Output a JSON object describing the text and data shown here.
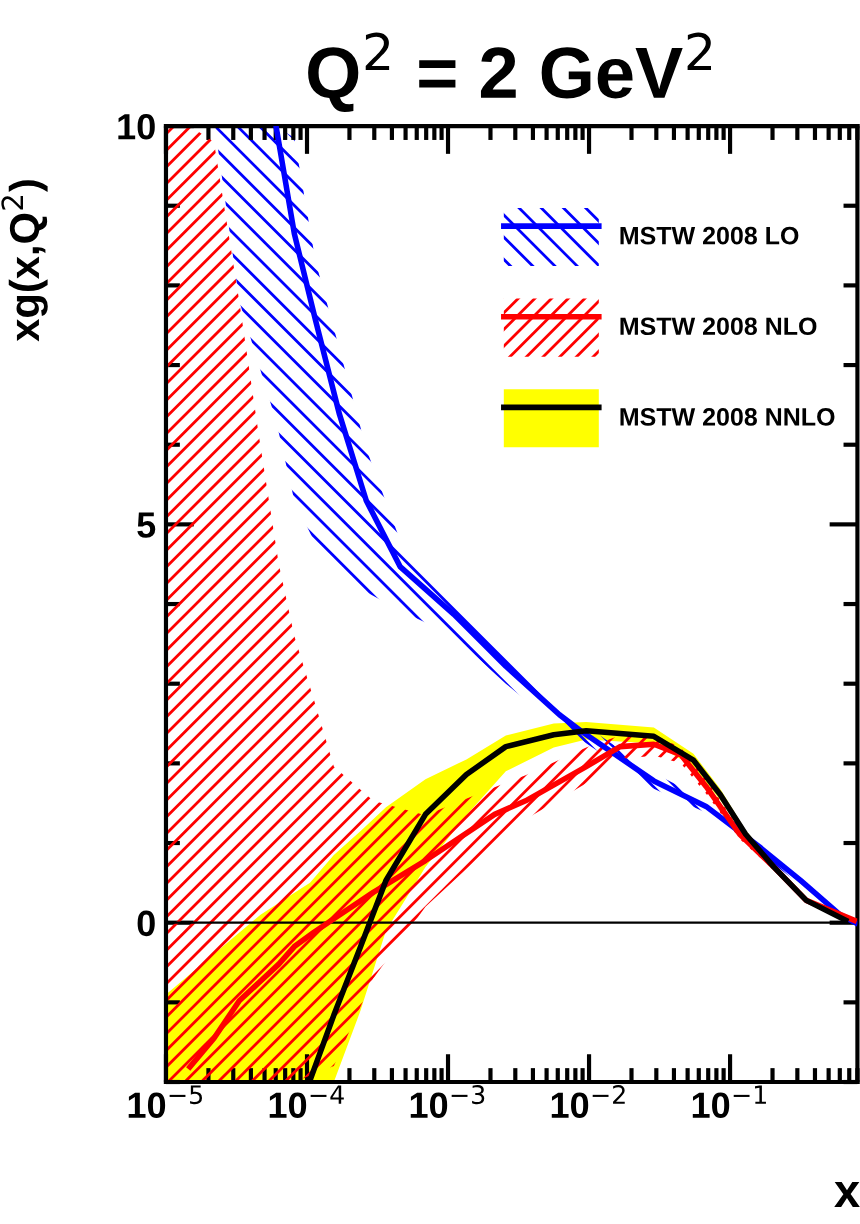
{
  "chart_data": {
    "type": "line",
    "title": "Q$^{2}$ = 2 GeV$^{2}$",
    "xlabel": "x",
    "ylabel": "xg(x,Q$^{2}$)",
    "log": "x",
    "xlim": [
      1e-05,
      0.8
    ],
    "ylim": [
      -2,
      10
    ],
    "xticks": [
      {
        "value": 1e-05,
        "label": "10$^{−5}$"
      },
      {
        "value": 0.0001,
        "label": "10$^{−4}$"
      },
      {
        "value": 0.001,
        "label": "10$^{−3}$"
      },
      {
        "value": 0.01,
        "label": "10$^{−2}$"
      },
      {
        "value": 0.1,
        "label": "10$^{−1}$"
      }
    ],
    "yticks": [
      0,
      5,
      10
    ],
    "grid": false,
    "legend": "top right",
    "marker": "none",
    "line_style": "solid",
    "ref_lines": [
      {
        "axis": "y",
        "value": 0,
        "label": null,
        "color": "#000000"
      }
    ],
    "series": [
      {
        "name": "MSTW 2008 LO",
        "color": "#0000ff",
        "x": [
          2.24e-05,
          3.31e-05,
          6.03e-05,
          8.13e-05,
          0.000115,
          0.00017,
          0.000263,
          0.000457,
          0.0011,
          0.00257,
          0.00617,
          0.00871,
          0.0288,
          0.0676,
          0.162,
          0.316,
          0.603,
          0.776
        ],
        "values": [
          null,
          null,
          10,
          8.65,
          7.56,
          6.38,
          5.3,
          4.47,
          3.87,
          3.22,
          2.61,
          2.41,
          1.78,
          1.46,
          0.95,
          0.53,
          0.1,
          0.0
        ],
        "lower": [
          9.95,
          7.8,
          6.3,
          5.3,
          4.75,
          4.35,
          4.15,
          3.92,
          3.6,
          3.0,
          2.45,
          2.3,
          1.68,
          1.38,
          0.88,
          0.47,
          0.06,
          -0.02
        ],
        "upper": [
          10,
          10,
          10,
          9.85,
          8.3,
          7.2,
          5.95,
          4.8,
          4.05,
          3.4,
          2.75,
          2.52,
          1.88,
          1.54,
          1.02,
          0.59,
          0.14,
          0.03
        ]
      },
      {
        "name": "MSTW 2008 NLO",
        "color": "#ff0000",
        "x": [
          1e-05,
          1.48e-05,
          2.19e-05,
          3.31e-05,
          4.57e-05,
          6.31e-05,
          8.13e-05,
          0.000112,
          0.000155,
          0.000295,
          0.000692,
          0.00214,
          0.00355,
          0.00955,
          0.0166,
          0.0288,
          0.0447,
          0.0676,
          0.117,
          0.204,
          0.347,
          0.759
        ],
        "values": [
          null,
          -1.81,
          -1.45,
          -0.98,
          -0.75,
          -0.52,
          -0.3,
          -0.12,
          0.05,
          0.38,
          0.78,
          1.36,
          1.53,
          1.96,
          2.21,
          2.24,
          2.11,
          1.71,
          1.11,
          0.7,
          0.28,
          0.03
        ],
        "lower": [
          -2,
          -2,
          -2,
          -2,
          -2,
          -2,
          -2,
          -1.9,
          -1.8,
          -0.7,
          0.2,
          1.0,
          1.3,
          1.75,
          2.05,
          2.1,
          2.0,
          1.62,
          1.05,
          0.66,
          0.26,
          0.02
        ],
        "upper": [
          10,
          10,
          9.8,
          7.8,
          6.1,
          4.5,
          3.6,
          2.8,
          1.96,
          1.53,
          1.35,
          1.7,
          1.85,
          2.2,
          2.35,
          2.36,
          2.2,
          1.8,
          1.17,
          0.74,
          0.3,
          0.04
        ]
      },
      {
        "name": "MSTW 2008 NNLO",
        "color": "#000000",
        "x": [
          1e-05,
          4.68e-05,
          0.000105,
          0.000155,
          0.00024,
          0.000363,
          0.000692,
          0.00135,
          0.00257,
          0.00562,
          0.00955,
          0.0288,
          0.055,
          0.0851,
          0.129,
          0.204,
          0.347,
          0.661
        ],
        "values": [
          null,
          null,
          -1.98,
          -1.16,
          -0.3,
          0.53,
          1.36,
          1.86,
          2.21,
          2.36,
          2.41,
          2.34,
          2.04,
          1.61,
          1.11,
          0.7,
          0.28,
          0.03
        ],
        "lower": [
          -2,
          -2,
          -2,
          -2,
          -1.1,
          -0.1,
          0.7,
          1.35,
          1.9,
          2.2,
          2.3,
          2.25,
          1.96,
          1.54,
          1.06,
          0.66,
          0.25,
          0.01
        ],
        "upper": [
          -0.9,
          0.1,
          0.5,
          0.85,
          1.15,
          1.45,
          1.8,
          2.05,
          2.35,
          2.5,
          2.52,
          2.45,
          2.12,
          1.68,
          1.16,
          0.74,
          0.31,
          0.05
        ]
      }
    ]
  }
}
